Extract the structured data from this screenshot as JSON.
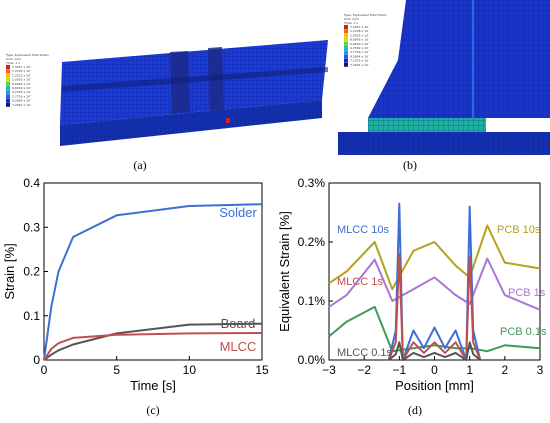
{
  "panels": {
    "a": {
      "label": "(a)",
      "legend": {
        "header": [
          "Type: Equivalent Total Strain",
          "Unit: m/m",
          "Time: 1 s"
        ],
        "values": [
          "7.3457 x 10⁻",
          "7.0795 x 10⁻",
          "1.2522 x 10⁻",
          "1.0555 x 10⁻",
          "8.6095 x 10⁻",
          "6.6639 x 10⁻",
          "4.7182 x 10⁻",
          "2.7726 x 10⁻",
          "8.2694 x 10⁻",
          "7.2491 x 10⁻"
        ]
      }
    },
    "b": {
      "label": "(b)",
      "legend": {
        "header": [
          "Type: Equivalent Total Strain",
          "Unit: m/m",
          "Time: 1 s"
        ],
        "values": [
          "7.3457 x 10⁻",
          "1.2798 x 10⁻",
          "1.0555 x 10⁻",
          "8.6095 x 10⁻",
          "6.6639 x 10⁻",
          "4.7182 x 10⁻",
          "2.7726 x 10⁻",
          "8.2694 x 10⁻",
          "7.1975 x 10⁻",
          "7.2491 x 10⁻"
        ]
      }
    },
    "c": {
      "label": "(c)"
    },
    "d": {
      "label": "(d)"
    }
  },
  "legend_colors": [
    "#d62020",
    "#e86a10",
    "#f2c21a",
    "#c9e01e",
    "#5fd03a",
    "#20c6a0",
    "#1aa0e0",
    "#1a60e0",
    "#1a2ac8",
    "#10187a"
  ],
  "chart_data": [
    {
      "type": "line",
      "xlabel": "Time [s]",
      "ylabel": "Strain [%]",
      "xlim": [
        0,
        15
      ],
      "ylim": [
        0,
        0.4
      ],
      "xticks": [
        "0",
        "5",
        "10",
        "15"
      ],
      "yticks": [
        "0",
        "0.1",
        "0.2",
        "0.3",
        "0.4"
      ],
      "grid": false,
      "series": [
        {
          "name": "Solder",
          "color": "#3b6fd4",
          "x": [
            0,
            0.5,
            1,
            2,
            5,
            10,
            15
          ],
          "y": [
            0,
            0.12,
            0.2,
            0.278,
            0.327,
            0.348,
            0.352
          ]
        },
        {
          "name": "Board",
          "color": "#555555",
          "x": [
            0,
            0.5,
            1,
            2,
            5,
            10,
            15
          ],
          "y": [
            0,
            0.012,
            0.022,
            0.035,
            0.06,
            0.08,
            0.082
          ]
        },
        {
          "name": "MLCC",
          "color": "#c0504d",
          "x": [
            0,
            0.5,
            1,
            2,
            5,
            10,
            15
          ],
          "y": [
            0,
            0.025,
            0.038,
            0.05,
            0.057,
            0.06,
            0.061
          ]
        }
      ]
    },
    {
      "type": "line",
      "xlabel": "Position [mm]",
      "ylabel": "Equivalent Strain [%]",
      "xlim": [
        -3,
        3
      ],
      "ylim": [
        0,
        0.3
      ],
      "xticks": [
        "−3",
        "−2",
        "−1",
        "0",
        "1",
        "2",
        "3"
      ],
      "yticks": [
        "0.0%",
        "0.1%",
        "0.2%",
        "0.3%"
      ],
      "grid": false,
      "series": [
        {
          "name": "PCB 10s",
          "color": "#b5a21c",
          "x": [
            -3,
            -2.5,
            -1.7,
            -1.2,
            -0.6,
            0,
            0.6,
            1,
            1.5,
            2,
            3
          ],
          "y": [
            0.13,
            0.15,
            0.2,
            0.12,
            0.185,
            0.2,
            0.16,
            0.14,
            0.228,
            0.165,
            0.155
          ]
        },
        {
          "name": "PCB 1s",
          "color": "#a877d6",
          "x": [
            -3,
            -2.5,
            -1.7,
            -1.2,
            -0.6,
            0,
            0.6,
            1,
            1.5,
            2,
            3
          ],
          "y": [
            0.09,
            0.11,
            0.17,
            0.1,
            0.12,
            0.14,
            0.11,
            0.095,
            0.172,
            0.11,
            0.085
          ]
        },
        {
          "name": "PCB 0.1s",
          "color": "#3f9a5a",
          "x": [
            -3,
            -2.5,
            -1.7,
            -1.2,
            -0.6,
            0,
            0.6,
            1,
            1.5,
            2,
            3
          ],
          "y": [
            0.04,
            0.065,
            0.09,
            0.015,
            0.02,
            0.025,
            0.02,
            0.02,
            0.015,
            0.025,
            0.02
          ]
        },
        {
          "name": "MLCC 10s",
          "color": "#3b6fd4",
          "x": [
            -3,
            -1.5,
            -1.3,
            -1.1,
            -1.0,
            -0.9,
            -0.6,
            -0.3,
            0,
            0.3,
            0.6,
            0.9,
            1.0,
            1.1,
            1.3
          ],
          "y": [
            null,
            null,
            0.0,
            0.05,
            0.265,
            0.0,
            0.05,
            0.02,
            0.055,
            0.02,
            0.05,
            0.0,
            0.26,
            0.05,
            0.0
          ]
        },
        {
          "name": "MLCC 1s",
          "color": "#c0504d",
          "x": [
            -1.3,
            -1.1,
            -1.0,
            -0.9,
            -0.6,
            -0.3,
            0,
            0.3,
            0.6,
            0.9,
            1.0,
            1.1,
            1.3
          ],
          "y": [
            0.0,
            0.03,
            0.18,
            0.0,
            0.03,
            0.012,
            0.03,
            0.012,
            0.03,
            0.0,
            0.175,
            0.03,
            0.0
          ]
        },
        {
          "name": "MLCC 0.1s",
          "color": "#555555",
          "x": [
            -1.3,
            -1.1,
            -1.0,
            -0.9,
            -0.6,
            -0.3,
            0,
            0.3,
            0.6,
            0.9,
            1.0,
            1.1,
            1.3
          ],
          "y": [
            0.0,
            0.01,
            0.03,
            0.0,
            0.012,
            0.005,
            0.012,
            0.005,
            0.012,
            0.0,
            0.03,
            0.01,
            0.0
          ]
        }
      ],
      "labels": [
        {
          "text": "MLCC 10s",
          "color": "#3b6fd4"
        },
        {
          "text": "MLCC 1s",
          "color": "#c0504d"
        },
        {
          "text": "MLCC 0.1s",
          "color": "#555555"
        },
        {
          "text": "PCB 10s",
          "color": "#b5a21c"
        },
        {
          "text": "PCB 1s",
          "color": "#a877d6"
        },
        {
          "text": "PCB 0.1s",
          "color": "#3f9a5a"
        }
      ]
    }
  ]
}
